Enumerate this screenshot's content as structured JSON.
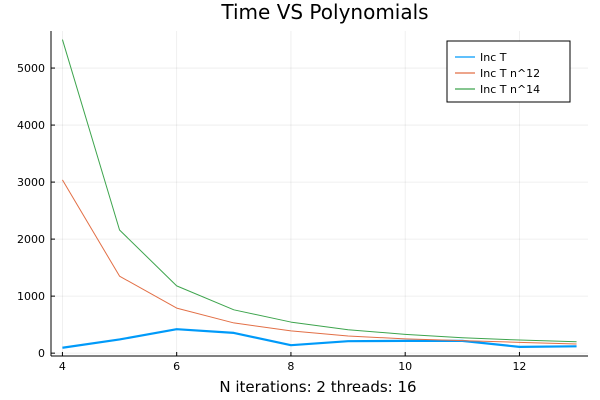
{
  "chart_data": {
    "type": "line",
    "title": "Time VS Polynomials",
    "xlabel": "N iterations: 2 threads: 16",
    "ylabel": "",
    "x": [
      4,
      5,
      6,
      7,
      8,
      9,
      10,
      11,
      12,
      13
    ],
    "xlim": [
      3.8,
      13.2
    ],
    "ylim": [
      -50,
      5650
    ],
    "x_ticks": [
      4,
      6,
      8,
      10,
      12
    ],
    "y_ticks": [
      0,
      1000,
      2000,
      3000,
      4000,
      5000
    ],
    "grid": true,
    "legend_position": "top-right",
    "series": [
      {
        "name": "Inc T",
        "color": "#009af9",
        "values": [
          95,
          240,
          420,
          355,
          140,
          210,
          215,
          215,
          110,
          120
        ]
      },
      {
        "name": "Inc T n^12",
        "color": "#e26f46",
        "values": [
          3040,
          1350,
          790,
          530,
          390,
          300,
          250,
          220,
          190,
          160
        ]
      },
      {
        "name": "Inc T n^14",
        "color": "#3da44d",
        "values": [
          5500,
          2160,
          1180,
          760,
          545,
          410,
          330,
          270,
          230,
          200
        ]
      }
    ]
  }
}
